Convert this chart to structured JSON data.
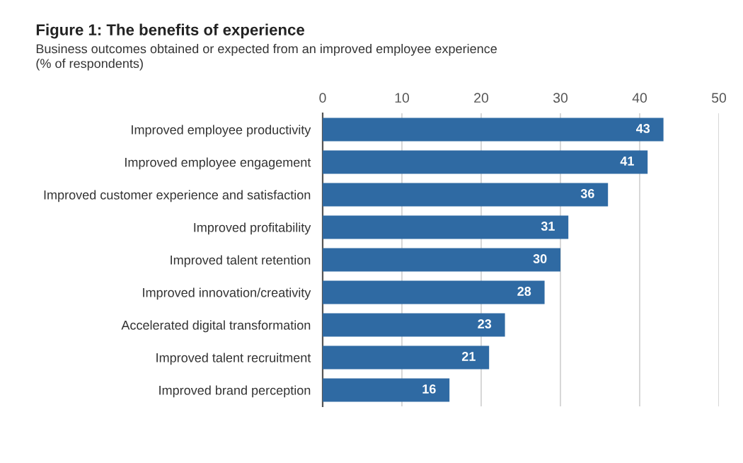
{
  "chart_data": {
    "type": "bar",
    "orientation": "horizontal",
    "title": "Figure 1: The benefits of experience",
    "subtitle": "Business outcomes obtained or expected from an improved employee experience\n(% of respondents)",
    "categories": [
      "Improved employee productivity",
      "Improved employee engagement",
      "Improved customer experience and satisfaction",
      "Improved profitability",
      "Improved talent retention",
      "Improved innovation/creativity",
      "Accelerated digital transformation",
      "Improved talent recruitment",
      "Improved brand perception"
    ],
    "values": [
      43,
      41,
      36,
      31,
      30,
      28,
      23,
      21,
      16
    ],
    "color": "#2f6aa3",
    "xlim": [
      0,
      50
    ],
    "xticks": [
      0,
      10,
      20,
      30,
      40,
      50
    ],
    "grid": "x",
    "data_labels": true
  }
}
